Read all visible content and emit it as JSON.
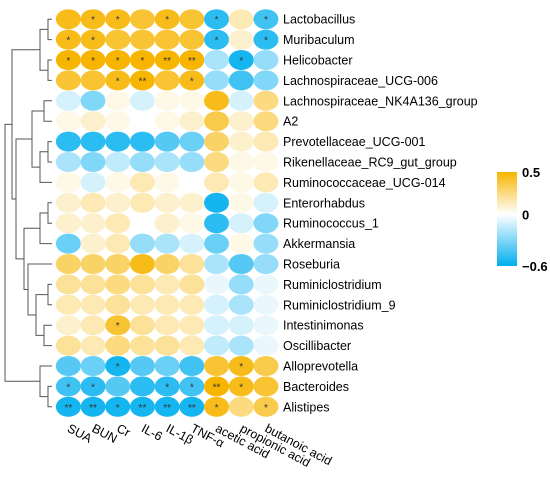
{
  "chart_data": {
    "type": "heatmap",
    "title": "",
    "xlabel": "",
    "ylabel": "",
    "columns": [
      "SUA",
      "BUN",
      "Cr",
      "IL-6",
      "IL-1β",
      "TNF-α",
      "acetic acid",
      "propionic acid",
      "butanoic acid"
    ],
    "rows": [
      "Lactobacillus",
      "Muribaculum",
      "Helicobacter",
      "Lachnospiraceae_UCG-006",
      "Lachnospiraceae_NK4A136_group",
      "A2",
      "Prevotellaceae_UCG-001",
      "Rikenellaceae_RC9_gut_group",
      "Ruminococcaceae_UCG-014",
      "Enterorhabdus",
      "Ruminococcus_1",
      "Akkermansia",
      "Roseburia",
      "Ruminiclostridium",
      "Ruminiclostridium_9",
      "Intestinimonas",
      "Oscillibacter",
      "Alloprevotella",
      "Bacteroides",
      "Alistipes"
    ],
    "values": [
      [
        0.45,
        0.45,
        0.45,
        0.4,
        0.45,
        0.4,
        -0.5,
        0.15,
        -0.45
      ],
      [
        0.45,
        0.45,
        0.4,
        0.4,
        0.4,
        0.4,
        -0.5,
        0.1,
        -0.5
      ],
      [
        0.5,
        0.5,
        0.5,
        0.5,
        0.5,
        0.5,
        -0.2,
        -0.55,
        -0.25
      ],
      [
        0.4,
        0.4,
        0.45,
        0.5,
        0.4,
        0.45,
        -0.25,
        -0.45,
        -0.3
      ],
      [
        -0.1,
        -0.3,
        0.05,
        -0.1,
        0.05,
        0.05,
        0.45,
        -0.1,
        0.25
      ],
      [
        0.05,
        0.1,
        0.05,
        0.0,
        0.05,
        0.1,
        0.35,
        0.1,
        0.25
      ],
      [
        -0.5,
        -0.5,
        -0.5,
        -0.5,
        -0.4,
        -0.35,
        0.3,
        0.1,
        0.15
      ],
      [
        -0.2,
        -0.3,
        -0.15,
        -0.25,
        -0.2,
        -0.25,
        0.25,
        0.05,
        0.05
      ],
      [
        0.05,
        -0.1,
        0.05,
        0.15,
        0.05,
        0.0,
        0.15,
        0.05,
        0.15
      ],
      [
        0.1,
        0.15,
        0.1,
        0.15,
        0.1,
        0.1,
        -0.55,
        0.05,
        -0.1
      ],
      [
        0.1,
        0.1,
        0.15,
        0.0,
        0.1,
        0.05,
        -0.5,
        -0.1,
        -0.3
      ],
      [
        -0.35,
        0.1,
        0.15,
        -0.25,
        -0.2,
        -0.1,
        -0.35,
        0.05,
        -0.25
      ],
      [
        0.3,
        0.3,
        0.3,
        0.45,
        0.3,
        0.2,
        -0.2,
        -0.4,
        -0.25
      ],
      [
        0.2,
        0.2,
        0.25,
        0.2,
        0.15,
        0.2,
        -0.05,
        -0.25,
        -0.05
      ],
      [
        0.15,
        0.15,
        0.2,
        0.15,
        0.15,
        0.15,
        -0.1,
        -0.2,
        -0.05
      ],
      [
        0.1,
        0.15,
        0.4,
        0.2,
        0.15,
        0.15,
        -0.1,
        -0.1,
        -0.05
      ],
      [
        0.2,
        0.15,
        0.25,
        0.2,
        0.2,
        0.15,
        -0.15,
        -0.2,
        -0.05
      ],
      [
        -0.4,
        -0.35,
        -0.55,
        -0.4,
        -0.35,
        -0.45,
        0.4,
        0.45,
        0.35
      ],
      [
        -0.45,
        -0.5,
        -0.4,
        -0.5,
        -0.5,
        -0.45,
        0.5,
        0.45,
        0.4
      ],
      [
        -0.55,
        -0.55,
        -0.55,
        -0.55,
        -0.55,
        -0.55,
        0.45,
        0.25,
        0.35
      ]
    ],
    "significance": [
      [
        "",
        "*",
        "*",
        "",
        "*",
        "",
        "*",
        "",
        "*"
      ],
      [
        "*",
        "*",
        "",
        "",
        "",
        "",
        "*",
        "",
        "*"
      ],
      [
        "*",
        "*",
        "*",
        "*",
        "**",
        "**",
        "",
        "*",
        ""
      ],
      [
        "",
        "",
        "*",
        "**",
        "",
        "*",
        "",
        "",
        ""
      ],
      [
        "",
        "",
        "",
        "",
        "",
        "",
        "",
        "",
        ""
      ],
      [
        "",
        "",
        "",
        "",
        "",
        "",
        "",
        "",
        ""
      ],
      [
        "",
        "",
        "",
        "",
        "",
        "",
        "",
        "",
        ""
      ],
      [
        "",
        "",
        "",
        "",
        "",
        "",
        "",
        "",
        ""
      ],
      [
        "",
        "",
        "",
        "",
        "",
        "",
        "",
        "",
        ""
      ],
      [
        "",
        "",
        "",
        "",
        "",
        "",
        "",
        "",
        ""
      ],
      [
        "",
        "",
        "",
        "",
        "",
        "",
        "",
        "",
        ""
      ],
      [
        "",
        "",
        "",
        "",
        "",
        "",
        "",
        "",
        ""
      ],
      [
        "",
        "",
        "",
        "",
        "",
        "",
        "",
        "",
        ""
      ],
      [
        "",
        "",
        "",
        "",
        "",
        "",
        "",
        "",
        ""
      ],
      [
        "",
        "",
        "",
        "",
        "",
        "",
        "",
        "",
        ""
      ],
      [
        "",
        "",
        "*",
        "",
        "",
        "",
        "",
        "",
        ""
      ],
      [
        "",
        "",
        "",
        "",
        "",
        "",
        "",
        "",
        ""
      ],
      [
        "",
        "",
        "*",
        "",
        "",
        "",
        "",
        "*",
        ""
      ],
      [
        "*",
        "*",
        "",
        "",
        "*",
        "*",
        "**",
        "*",
        ""
      ],
      [
        "**",
        "**",
        "*",
        "**",
        "**",
        "**",
        "*",
        "",
        "*"
      ]
    ],
    "colorbar": {
      "min": -0.6,
      "max": 0.5,
      "ticks": [
        0.5,
        0,
        -0.6
      ],
      "tick_labels": [
        "0.5",
        "0",
        "−0.6"
      ],
      "color_low": "#00aeef",
      "color_mid": "#ffffff",
      "color_high": "#f7b500"
    },
    "dendrogram": "rows",
    "grid": false,
    "legend": "right"
  }
}
